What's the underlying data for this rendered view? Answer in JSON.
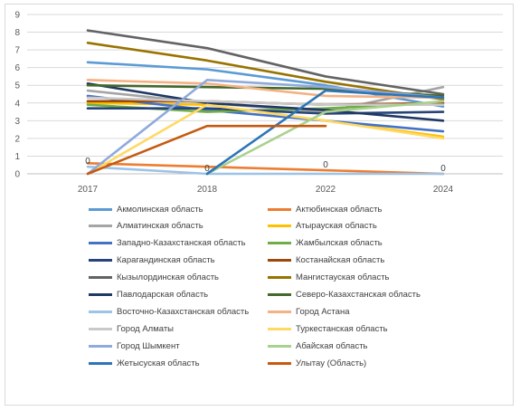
{
  "chart_data": {
    "type": "line",
    "x": [
      "2017",
      "2018",
      "2022",
      "2024"
    ],
    "ylim": [
      0,
      9
    ],
    "yticks": [
      0,
      1,
      2,
      3,
      4,
      5,
      6,
      7,
      8,
      9
    ],
    "grid": true,
    "legend_position": "bottom",
    "series": [
      {
        "name": "Акмолинская область",
        "color": "#5B9BD5",
        "values": [
          6.3,
          5.9,
          5.0,
          3.8
        ]
      },
      {
        "name": "Актюбинская область",
        "color": "#ED7D31",
        "values": [
          0.6,
          0.4,
          0.2,
          0.0
        ]
      },
      {
        "name": "Алматинская область",
        "color": "#A5A5A5",
        "values": [
          4.7,
          4.0,
          3.5,
          4.9
        ]
      },
      {
        "name": "Атырауская область",
        "color": "#FFC000",
        "values": [
          4.0,
          3.9,
          3.0,
          2.1
        ]
      },
      {
        "name": "Западно-Казахстанская область",
        "color": "#4472C4",
        "values": [
          4.4,
          3.6,
          3.0,
          2.4
        ]
      },
      {
        "name": "Жамбылская область",
        "color": "#70AD47",
        "values": [
          3.9,
          3.5,
          3.7,
          4.0
        ]
      },
      {
        "name": "Карагандинская область",
        "color": "#264478",
        "values": [
          3.7,
          3.7,
          3.4,
          3.5
        ]
      },
      {
        "name": "Костанайская область",
        "color": "#9E480E",
        "values": [
          4.1,
          4.1,
          3.9,
          4.0
        ]
      },
      {
        "name": "Кызылординская область",
        "color": "#636363",
        "values": [
          8.1,
          7.1,
          5.5,
          4.5
        ]
      },
      {
        "name": "Мангистауская область",
        "color": "#997300",
        "values": [
          7.4,
          6.4,
          5.2,
          4.2
        ]
      },
      {
        "name": "Павлодарская область",
        "color": "#203864",
        "values": [
          5.1,
          4.0,
          3.6,
          3.0
        ]
      },
      {
        "name": "Северо-Казахстанская область",
        "color": "#43682B",
        "values": [
          5.0,
          4.9,
          4.8,
          4.4
        ]
      },
      {
        "name": "Восточно-Казахстанская область",
        "color": "#9DC3E6",
        "values": [
          0.4,
          0.0,
          0.0,
          0.0
        ]
      },
      {
        "name": "Город Астана",
        "color": "#F4B183",
        "values": [
          5.3,
          5.1,
          4.4,
          4.3
        ]
      },
      {
        "name": "Город Алматы",
        "color": "#C9C9C9",
        "values": [
          4.3,
          4.1,
          3.9,
          3.9
        ]
      },
      {
        "name": "Туркестанская область",
        "color": "#FFD966",
        "values": [
          0.0,
          3.9,
          3.0,
          2.0
        ]
      },
      {
        "name": "Город Шымкент",
        "color": "#8FAADC",
        "values": [
          0.0,
          5.3,
          4.9,
          4.3
        ]
      },
      {
        "name": "Абайская область",
        "color": "#A9D18E",
        "values": [
          null,
          0.0,
          3.5,
          4.1
        ]
      },
      {
        "name": "Жетысуская область",
        "color": "#2E75B6",
        "values": [
          null,
          0.0,
          4.7,
          4.3
        ]
      },
      {
        "name": "Улытау (Область)",
        "color": "#C55A11",
        "values": [
          0.0,
          2.7,
          2.7,
          null
        ]
      }
    ],
    "data_labels": [
      {
        "text": "0",
        "series": 12,
        "point": 0
      },
      {
        "text": "0",
        "series": 17,
        "point": 1
      },
      {
        "text": "0",
        "series": 1,
        "point": 2
      },
      {
        "text": "0",
        "series": 1,
        "point": 3
      }
    ]
  }
}
